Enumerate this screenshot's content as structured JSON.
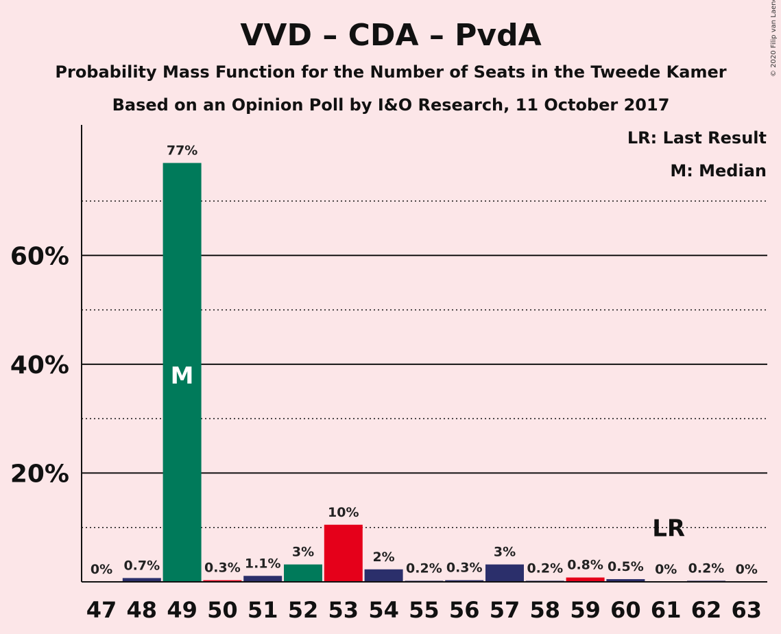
{
  "copyright": "© 2020 Filip van Laenen",
  "chart_data": {
    "type": "bar",
    "title": "VVD – CDA – PvdA",
    "subtitle": "Probability Mass Function for the Number of Seats in the Tweede Kamer",
    "subtitle2": "Based on an Opinion Poll by I&O Research, 11 October 2017",
    "xlabel": "",
    "ylabel": "",
    "ylim": [
      0,
      84
    ],
    "yticks": [
      20,
      40,
      60
    ],
    "ytick_labels": [
      "20%",
      "40%",
      "60%"
    ],
    "dotted_gridlines": [
      10,
      30,
      50,
      70
    ],
    "categories": [
      "47",
      "48",
      "49",
      "50",
      "51",
      "52",
      "53",
      "54",
      "55",
      "56",
      "57",
      "58",
      "59",
      "60",
      "61",
      "62",
      "63"
    ],
    "values": [
      0,
      0.7,
      77,
      0.3,
      1.1,
      3.2,
      10.5,
      2.3,
      0.2,
      0.3,
      3.2,
      0.2,
      0.8,
      0.5,
      0,
      0.2,
      0
    ],
    "labels": [
      "0%",
      "0.7%",
      "77%",
      "0.3%",
      "1.1%",
      "3%",
      "10%",
      "2%",
      "0.2%",
      "0.3%",
      "3%",
      "0.2%",
      "0.8%",
      "0.5%",
      "0%",
      "0.2%",
      "0%"
    ],
    "bar_colors": [
      "#2b2f6b",
      "#2b2f6b",
      "#007a5a",
      "#e5001a",
      "#2b2f6b",
      "#007a5a",
      "#e5001a",
      "#2b2f6b",
      "#2b2f6b",
      "#2b2f6b",
      "#2b2f6b",
      "#2b2f6b",
      "#e5001a",
      "#2b2f6b",
      "#2b2f6b",
      "#2b2f6b",
      "#2b2f6b"
    ],
    "median_seat": "49",
    "median_marker": "M",
    "last_result_seat": "61",
    "last_result_marker": "LR",
    "legend": [
      "LR: Last Result",
      "M: Median"
    ],
    "legend_position": "top-right",
    "grid": true
  }
}
